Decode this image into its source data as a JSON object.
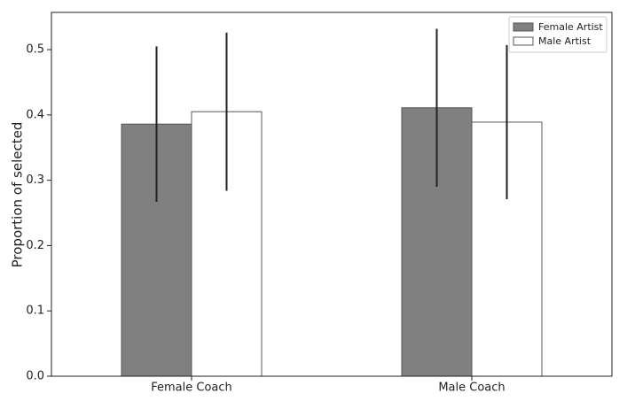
{
  "chart_data": {
    "type": "bar",
    "y_label": "Proportion of selected",
    "categories": [
      "Female Coach",
      "Male Coach"
    ],
    "series": [
      {
        "name": "Female Artist",
        "color": "#808080",
        "values": [
          0.386,
          0.411
        ],
        "errors": [
          0.119,
          0.121
        ]
      },
      {
        "name": "Male Artist",
        "color": "#ffffff",
        "values": [
          0.405,
          0.389
        ],
        "errors": [
          0.121,
          0.118
        ]
      }
    ],
    "ylim": [
      0,
      0.557
    ],
    "yticks": [
      {
        "value": 0,
        "label": "0.0"
      },
      0.1,
      0.2,
      0.3,
      0.4,
      0.5
    ],
    "legend": "upper right"
  }
}
